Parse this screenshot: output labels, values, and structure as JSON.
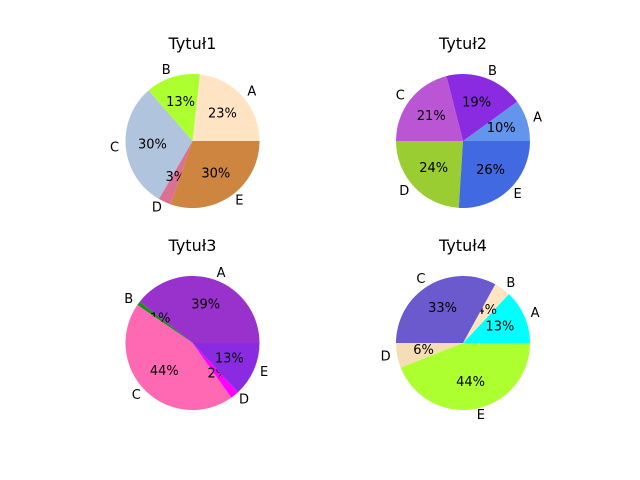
{
  "chart_data": [
    {
      "type": "pie",
      "title": "Tytuł1",
      "labels": [
        "A",
        "B",
        "C",
        "D",
        "E"
      ],
      "values": [
        23,
        13,
        30,
        3,
        30
      ],
      "pct_labels": [
        "23%",
        "13%",
        "30%",
        "3%",
        "30%"
      ],
      "colors": [
        "#ffe4c4",
        "#adff2f",
        "#b0c4de",
        "#db7093",
        "#cd853f"
      ]
    },
    {
      "type": "pie",
      "title": "Tytuł2",
      "labels": [
        "A",
        "B",
        "C",
        "D",
        "E"
      ],
      "values": [
        10,
        19,
        21,
        24,
        26
      ],
      "pct_labels": [
        "10%",
        "19%",
        "21%",
        "24%",
        "26%"
      ],
      "colors": [
        "#6495ed",
        "#8a2be2",
        "#ba55d3",
        "#9acd32",
        "#4169e1"
      ]
    },
    {
      "type": "pie",
      "title": "Tytuł3",
      "labels": [
        "A",
        "B",
        "C",
        "D",
        "E"
      ],
      "values": [
        39,
        1,
        44,
        2,
        13
      ],
      "pct_labels": [
        "39%",
        "1%",
        "44%",
        "2%",
        "13%"
      ],
      "colors": [
        "#9932cc",
        "#228b22",
        "#ff69b4",
        "#ff00ff",
        "#8a2be2"
      ]
    },
    {
      "type": "pie",
      "title": "Tytuł4",
      "labels": [
        "A",
        "B",
        "C",
        "D",
        "E"
      ],
      "values": [
        13,
        4,
        33,
        6,
        44
      ],
      "pct_labels": [
        "13%",
        "4%",
        "33%",
        "6%",
        "44%"
      ],
      "colors": [
        "#00ffff",
        "#ffe4c4",
        "#6a5acd",
        "#f5deb3",
        "#adff2f"
      ]
    }
  ]
}
